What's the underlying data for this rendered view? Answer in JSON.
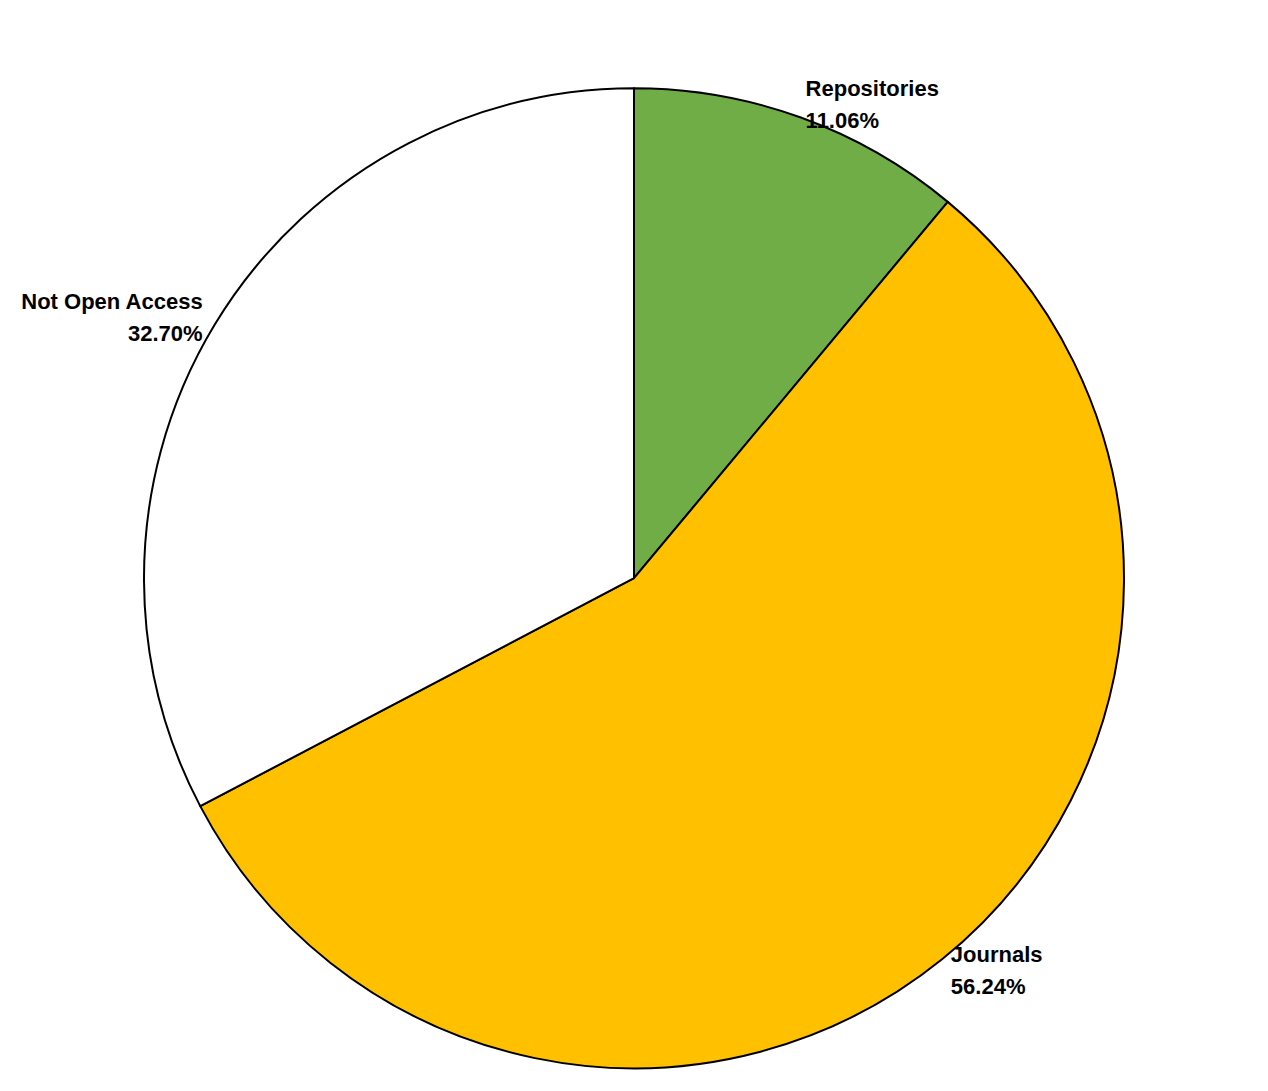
{
  "chart_data": {
    "type": "pie",
    "categories": [
      "Repositories",
      "Journals",
      "Not Open Access"
    ],
    "values": [
      11.06,
      56.24,
      32.7
    ],
    "value_labels": [
      "11.06%",
      "56.24%",
      "32.70%"
    ],
    "colors": [
      "#70ad47",
      "#ffc000",
      "#ffffff"
    ],
    "data_labels": true
  }
}
